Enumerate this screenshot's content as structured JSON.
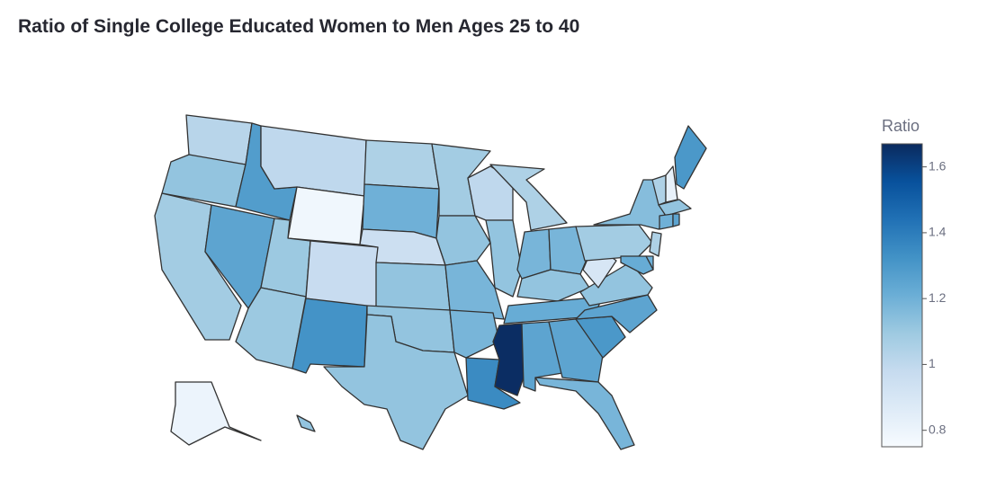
{
  "chart_data": {
    "type": "choropleth",
    "title": "Ratio of Single College Educated Women to Men Ages 25 to 40",
    "colorbar_title": "Ratio",
    "zlim": [
      0.75,
      1.67
    ],
    "zticks": [
      0.8,
      1,
      1.2,
      1.4,
      1.6
    ],
    "colorscale": [
      [
        0,
        "#f7fbff"
      ],
      [
        0.125,
        "#deebf7"
      ],
      [
        0.25,
        "#c6dbef"
      ],
      [
        0.375,
        "#9ecae1"
      ],
      [
        0.5,
        "#6baed6"
      ],
      [
        0.625,
        "#4292c6"
      ],
      [
        0.75,
        "#2171b5"
      ],
      [
        0.875,
        "#08519c"
      ],
      [
        1,
        "#0b2a5e"
      ]
    ],
    "values": [
      1.02,
      1.12,
      1.08,
      1.25,
      1.28,
      1.0,
      0.78,
      1.1,
      0.97,
      1.1,
      1.32,
      1.05,
      1.2,
      0.95,
      1.12,
      1.12,
      1.12,
      1.08,
      1.12,
      1.18,
      1.18,
      1.35,
      1.0,
      1.12,
      1.05,
      1.18,
      1.18,
      1.12,
      1.22,
      1.66,
      1.25,
      1.25,
      1.18,
      1.3,
      1.25,
      1.12,
      0.9,
      1.08,
      1.15,
      1.05,
      0.82,
      1.3,
      1.12,
      1.2,
      1.25,
      1.05,
      1.2,
      1.22,
      0.8,
      1.12
    ]
  }
}
